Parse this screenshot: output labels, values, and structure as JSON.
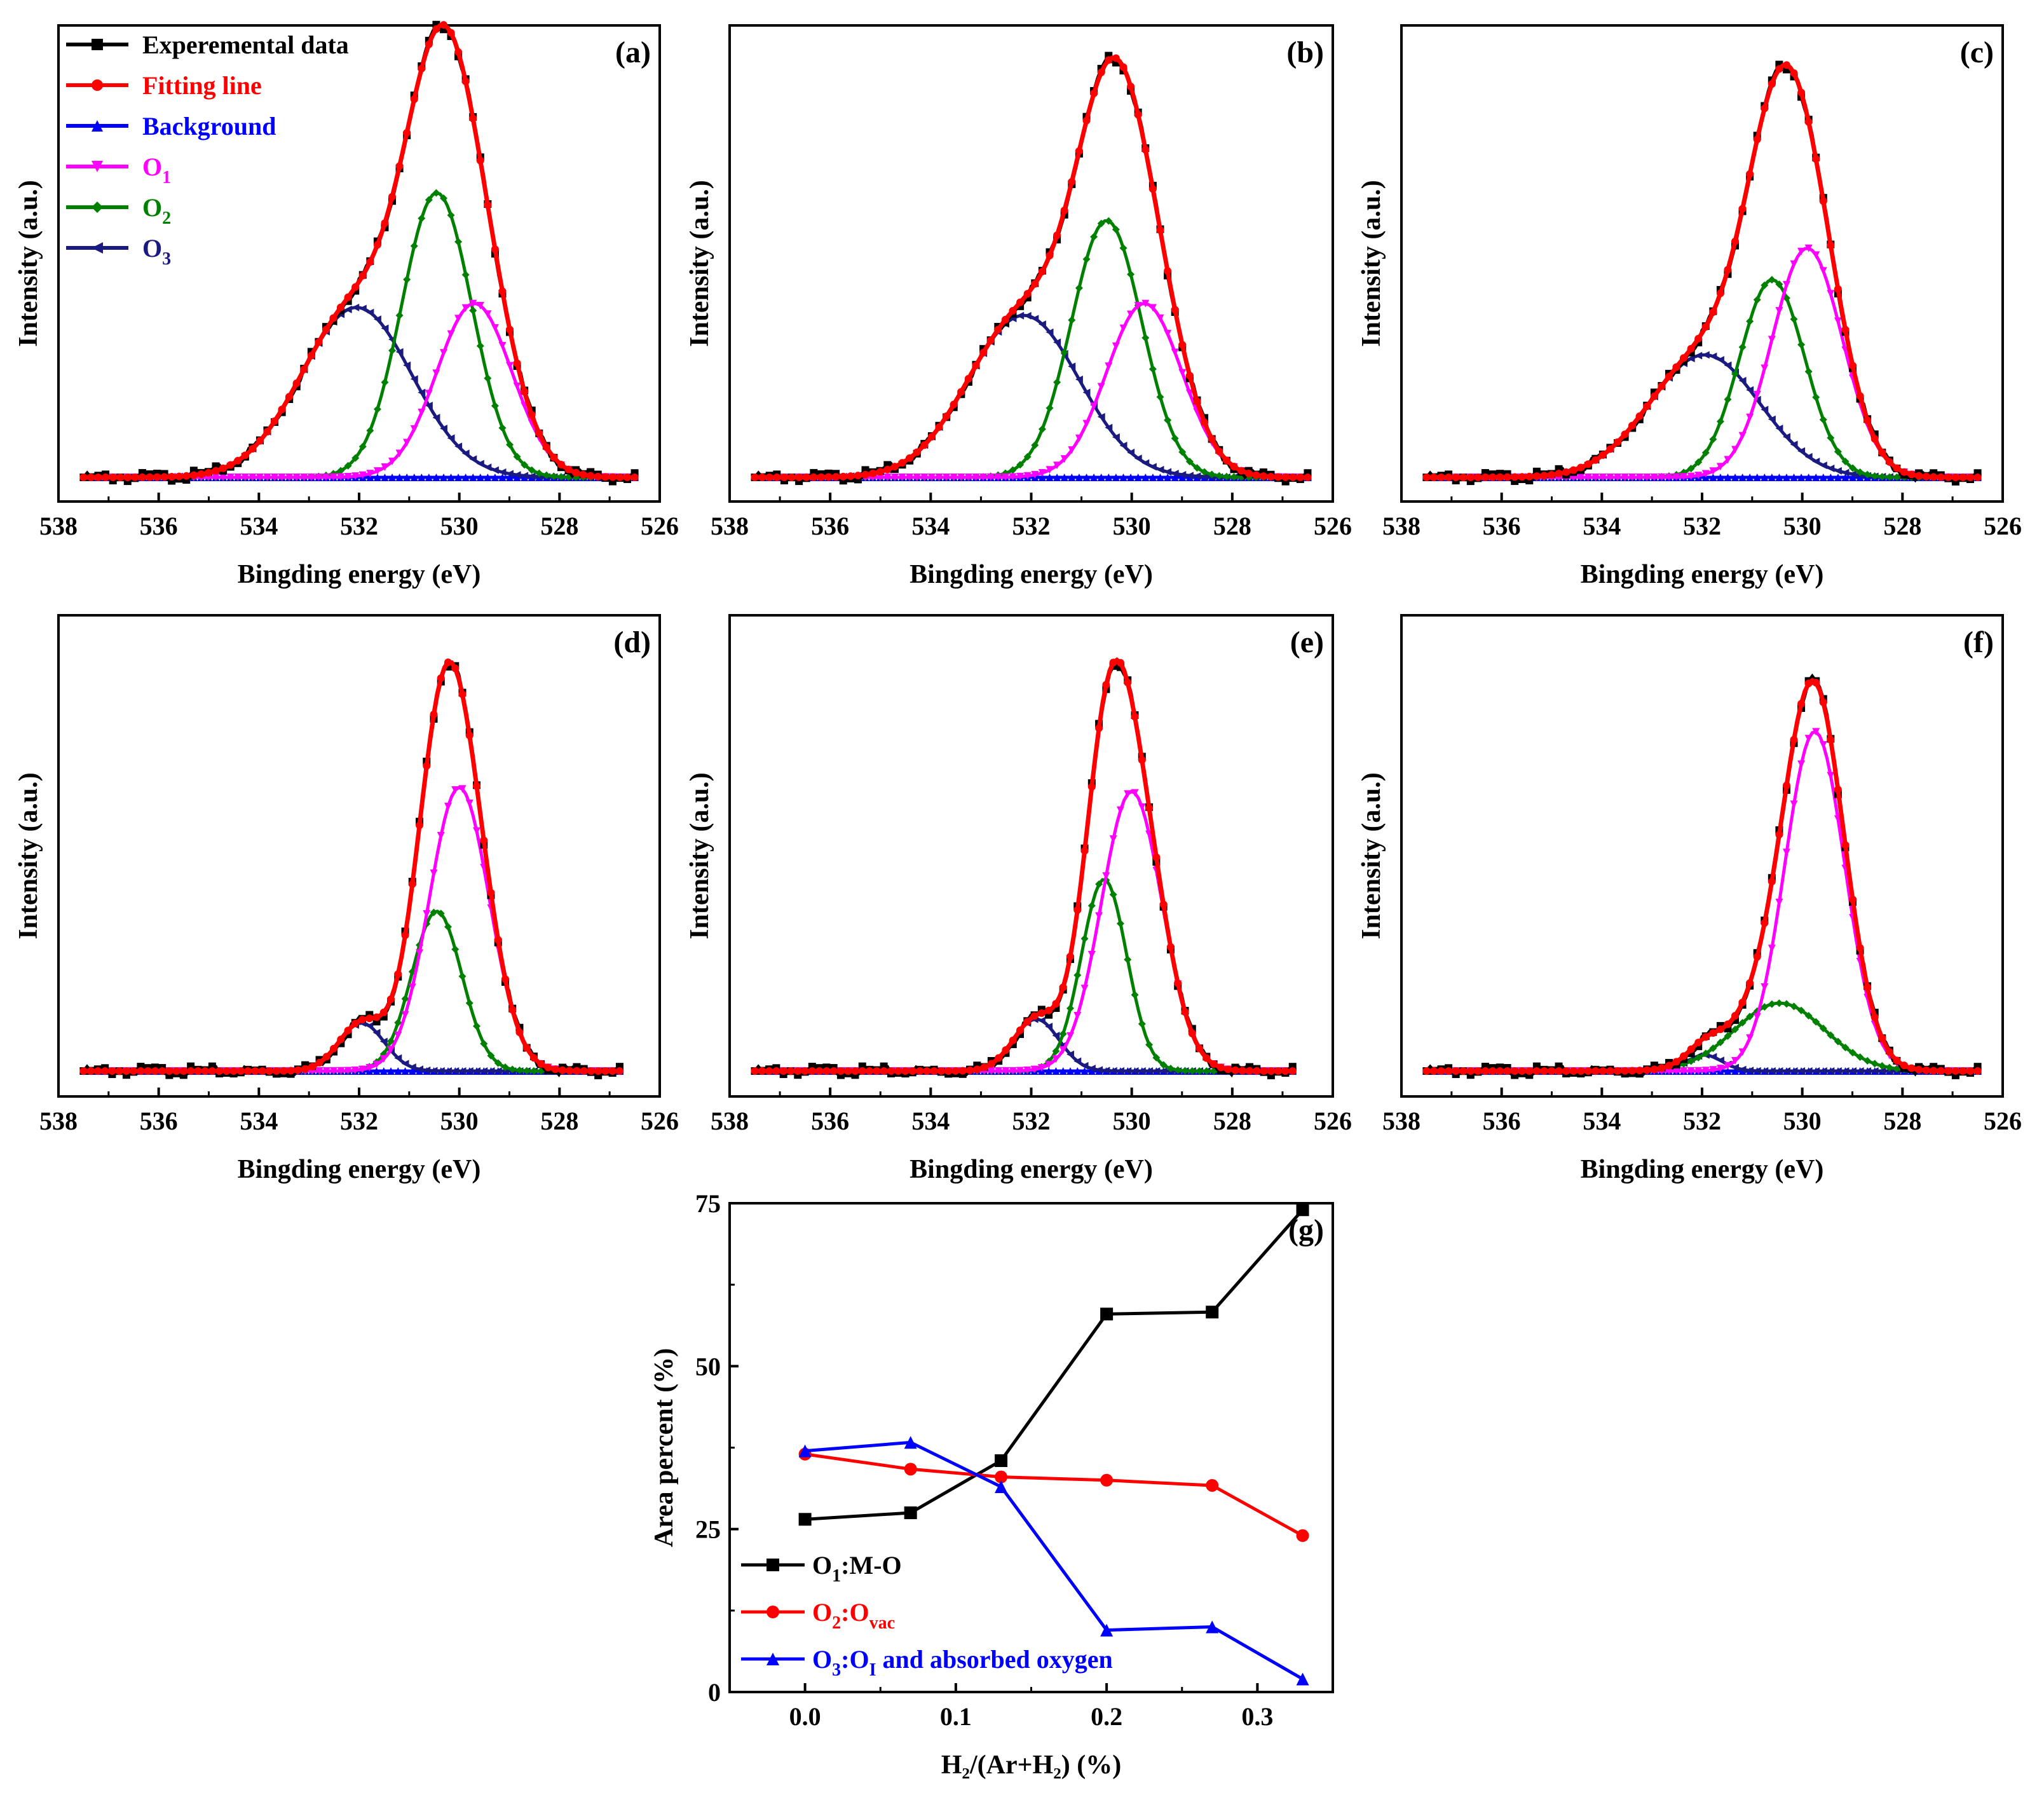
{
  "figure": {
    "description_free": true
  },
  "chart_data": [
    {
      "id": "a",
      "type": "line",
      "panel_label": "(a)",
      "xlabel": "Bingding energy (eV)",
      "ylabel": "Intensity (a.u.)",
      "xlim": [
        538,
        526
      ],
      "xticks": [
        "538",
        "536",
        "534",
        "532",
        "530",
        "528",
        "526"
      ],
      "x_range": [
        537.5,
        526.5
      ],
      "peaks": {
        "O1": {
          "center": 529.7,
          "height": 0.44,
          "sigma": 0.75
        },
        "O2": {
          "center": 530.45,
          "height": 0.72,
          "sigma": 0.7
        },
        "O3": {
          "center": 532.05,
          "height": 0.43,
          "sigma": 1.1
        }
      }
    },
    {
      "id": "b",
      "type": "line",
      "panel_label": "(b)",
      "xlabel": "Bingding energy (eV)",
      "ylabel": "Intensity (a.u.)",
      "xlim": [
        538,
        526
      ],
      "xticks": [
        "538",
        "536",
        "534",
        "532",
        "530",
        "528",
        "526"
      ],
      "x_range": [
        537.5,
        526.5
      ],
      "peaks": {
        "O1": {
          "center": 529.75,
          "height": 0.44,
          "sigma": 0.75
        },
        "O2": {
          "center": 530.5,
          "height": 0.65,
          "sigma": 0.7
        },
        "O3": {
          "center": 532.15,
          "height": 0.41,
          "sigma": 1.1
        }
      }
    },
    {
      "id": "c",
      "type": "line",
      "panel_label": "(c)",
      "xlabel": "Bingding energy (eV)",
      "ylabel": "Intensity (a.u.)",
      "xlim": [
        538,
        526
      ],
      "xticks": [
        "538",
        "536",
        "534",
        "532",
        "530",
        "528",
        "526"
      ],
      "x_range": [
        537.5,
        526.5
      ],
      "peaks": {
        "O1": {
          "center": 529.9,
          "height": 0.58,
          "sigma": 0.7
        },
        "O2": {
          "center": 530.6,
          "height": 0.5,
          "sigma": 0.65
        },
        "O3": {
          "center": 531.95,
          "height": 0.31,
          "sigma": 1.1
        }
      }
    },
    {
      "id": "d",
      "type": "line",
      "panel_label": "(d)",
      "xlabel": "Bingding energy (eV)",
      "ylabel": "Intensity (a.u.)",
      "xlim": [
        538,
        526
      ],
      "xticks": [
        "538",
        "536",
        "534",
        "532",
        "530",
        "528",
        "526"
      ],
      "x_range": [
        537.5,
        526.8
      ],
      "peaks": {
        "O1": {
          "center": 530.0,
          "height": 0.71,
          "sigma": 0.6
        },
        "O2": {
          "center": 530.45,
          "height": 0.4,
          "sigma": 0.5
        },
        "O3": {
          "center": 531.95,
          "height": 0.12,
          "sigma": 0.45
        }
      }
    },
    {
      "id": "e",
      "type": "line",
      "panel_label": "(e)",
      "xlabel": "Bingding energy (eV)",
      "ylabel": "Intensity (a.u.)",
      "xlim": [
        538,
        526
      ],
      "xticks": [
        "538",
        "536",
        "534",
        "532",
        "530",
        "528",
        "526"
      ],
      "x_range": [
        537.5,
        526.8
      ],
      "peaks": {
        "O1": {
          "center": 530.0,
          "height": 0.7,
          "sigma": 0.6
        },
        "O2": {
          "center": 530.55,
          "height": 0.48,
          "sigma": 0.45
        },
        "O3": {
          "center": 531.9,
          "height": 0.13,
          "sigma": 0.45
        }
      }
    },
    {
      "id": "f",
      "type": "line",
      "panel_label": "(f)",
      "xlabel": "Bingding energy (eV)",
      "ylabel": "Intensity (a.u.)",
      "xlim": [
        538,
        526
      ],
      "xticks": [
        "538",
        "536",
        "534",
        "532",
        "530",
        "528",
        "526"
      ],
      "x_range": [
        537.5,
        526.5
      ],
      "peaks": {
        "O1": {
          "center": 529.75,
          "height": 0.85,
          "sigma": 0.6
        },
        "O2": {
          "center": 530.45,
          "height": 0.17,
          "sigma": 0.9
        },
        "O3": {
          "center": 531.95,
          "height": 0.04,
          "sigma": 0.35
        }
      }
    },
    {
      "id": "g",
      "type": "line",
      "panel_label": "(g)",
      "xlabel": "H₂/(Ar+H₂) (%)",
      "ylabel": "Area percent (%)",
      "xlim": [
        -0.05,
        0.35
      ],
      "ylim": [
        0,
        75
      ],
      "xticks": [
        "0.0",
        "0.1",
        "0.2",
        "0.3"
      ],
      "yticks": [
        "0",
        "25",
        "50",
        "75"
      ],
      "x": [
        0.0,
        0.07,
        0.13,
        0.2,
        0.27,
        0.33
      ],
      "series": [
        {
          "name": "O1:M-O",
          "values": [
            26.5,
            27.5,
            35.5,
            58.0,
            58.3,
            74.0
          ]
        },
        {
          "name": "O2:Ovac",
          "values": [
            36.5,
            34.2,
            33.0,
            32.5,
            31.7,
            24.0
          ]
        },
        {
          "name": "O3:OI and absorbed oxygen",
          "values": [
            37.0,
            38.3,
            31.5,
            9.5,
            10.0,
            2.0
          ]
        }
      ]
    }
  ],
  "legend_xps": [
    {
      "key": "exp",
      "label": "Experemental data",
      "color": "#000000"
    },
    {
      "key": "fit",
      "label": "Fitting line",
      "color": "#ff0000"
    },
    {
      "key": "bg",
      "label": "Background",
      "color": "#0000ff"
    },
    {
      "key": "o1",
      "label": "O",
      "sub": "1",
      "color": "#ff00ff"
    },
    {
      "key": "o2",
      "label": "O",
      "sub": "2",
      "color": "#008000"
    },
    {
      "key": "o3",
      "label": "O",
      "sub": "3",
      "color": "#1a1a80"
    }
  ],
  "legend_g": [
    {
      "pre": "O",
      "sub1": "1",
      "post": ":M-O",
      "sub2": "",
      "post2": "",
      "color": "#000000"
    },
    {
      "pre": "O",
      "sub1": "2",
      "post": ":O",
      "sub2": "vac",
      "post2": "",
      "color": "#ff0000"
    },
    {
      "pre": "O",
      "sub1": "3",
      "post": ":O",
      "sub2": "I",
      "post2": " and absorbed oxygen",
      "color": "#0000ff"
    }
  ],
  "colors": {
    "exp": "#000000",
    "fit": "#ff0000",
    "bg": "#0000ff",
    "o1": "#ff00ff",
    "o2": "#008000",
    "o3": "#1a1a80",
    "g_series": [
      "#000000",
      "#ff0000",
      "#0000ff"
    ]
  }
}
